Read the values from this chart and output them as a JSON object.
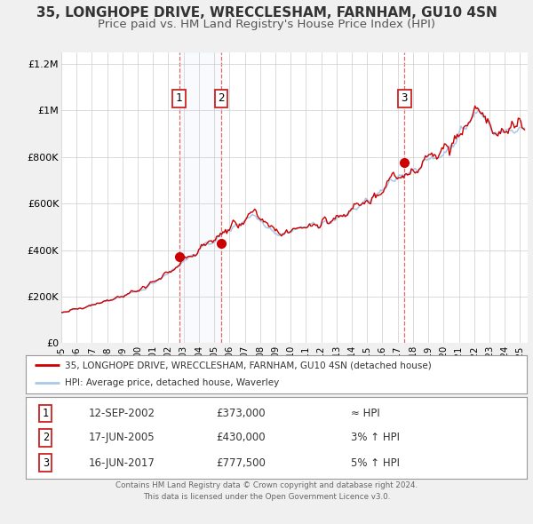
{
  "title": "35, LONGHOPE DRIVE, WRECCLESHAM, FARNHAM, GU10 4SN",
  "subtitle": "Price paid vs. HM Land Registry's House Price Index (HPI)",
  "title_fontsize": 11,
  "subtitle_fontsize": 9.5,
  "background_color": "#f0f0f0",
  "plot_background_color": "#ffffff",
  "ylim": [
    0,
    1250000
  ],
  "xlim_start": 1995.0,
  "xlim_end": 2025.5,
  "yticks": [
    0,
    200000,
    400000,
    600000,
    800000,
    1000000,
    1200000
  ],
  "ytick_labels": [
    "£0",
    "£200K",
    "£400K",
    "£600K",
    "£800K",
    "£1M",
    "£1.2M"
  ],
  "xticks": [
    1995,
    1996,
    1997,
    1998,
    1999,
    2000,
    2001,
    2002,
    2003,
    2004,
    2005,
    2006,
    2007,
    2008,
    2009,
    2010,
    2011,
    2012,
    2013,
    2014,
    2015,
    2016,
    2017,
    2018,
    2019,
    2020,
    2021,
    2022,
    2023,
    2024,
    2025
  ],
  "hpi_color": "#a8c8e8",
  "price_color": "#cc0000",
  "sale_marker_color": "#cc0000",
  "sale_marker_size": 7,
  "grid_color": "#cccccc",
  "sale_vline_color": "#dd4444",
  "sale_vline_alpha": 0.8,
  "sales": [
    {
      "date": 2002.71,
      "price": 373000,
      "label": "1"
    },
    {
      "date": 2005.46,
      "price": 430000,
      "label": "2"
    },
    {
      "date": 2017.45,
      "price": 777500,
      "label": "3"
    }
  ],
  "legend_line1": "35, LONGHOPE DRIVE, WRECCLESHAM, FARNHAM, GU10 4SN (detached house)",
  "legend_line2": "HPI: Average price, detached house, Waverley",
  "table_rows": [
    {
      "num": "1",
      "date": "12-SEP-2002",
      "price": "£373,000",
      "hpi": "≈ HPI"
    },
    {
      "num": "2",
      "date": "17-JUN-2005",
      "price": "£430,000",
      "hpi": "3% ↑ HPI"
    },
    {
      "num": "3",
      "date": "16-JUN-2017",
      "price": "£777,500",
      "hpi": "5% ↑ HPI"
    }
  ],
  "footer1": "Contains HM Land Registry data © Crown copyright and database right 2024.",
  "footer2": "This data is licensed under the Open Government Licence v3.0."
}
